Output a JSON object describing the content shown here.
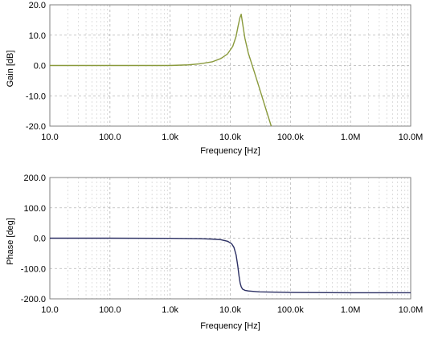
{
  "chart_data": [
    {
      "type": "line",
      "xlabel": "Frequency [Hz]",
      "ylabel": "Gain [dB]",
      "xscale": "log",
      "xlim": [
        10,
        10000000
      ],
      "ylim": [
        -20,
        20
      ],
      "grid": true,
      "xticks": [
        "10.0",
        "100.0",
        "1.0k",
        "10.0k",
        "100.0k",
        "1.0M",
        "10.0M"
      ],
      "yticks": [
        "20.0",
        "10.0",
        "0.0",
        "-10.0",
        "-20.0"
      ],
      "series": [
        {
          "color": "#8a9a3c",
          "x": [
            10,
            100,
            1000,
            2000,
            3000,
            5000,
            7000,
            9000,
            11000,
            12500,
            13500,
            14500,
            15200,
            16000,
            17500,
            20000,
            25000,
            30000,
            40000,
            48000
          ],
          "y": [
            0,
            0,
            0,
            0.2,
            0.5,
            1.2,
            2.3,
            3.8,
            6.3,
            9.6,
            13.0,
            15.8,
            16.9,
            14.0,
            9.0,
            4.0,
            -2.0,
            -7.0,
            -15.0,
            -20.0
          ]
        }
      ]
    },
    {
      "type": "line",
      "xlabel": "Frequency [Hz]",
      "ylabel": "Phase [deg]",
      "xscale": "log",
      "xlim": [
        10,
        10000000
      ],
      "ylim": [
        -200,
        200
      ],
      "grid": true,
      "xticks": [
        "10.0",
        "100.0",
        "1.0k",
        "10.0k",
        "100.0k",
        "1.0M",
        "10.0M"
      ],
      "yticks": [
        "200.0",
        "100.0",
        "0.0",
        "-100.0",
        "-200.0"
      ],
      "series": [
        {
          "color": "#2b2f63",
          "x": [
            10,
            100,
            1000,
            3000,
            5000,
            7000,
            9000,
            10500,
            11500,
            12500,
            13300,
            14000,
            14600,
            15200,
            16000,
            17500,
            20000,
            30000,
            100000,
            1000000,
            10000000
          ],
          "y": [
            0,
            0,
            -0.5,
            -1.5,
            -3,
            -5,
            -10,
            -18,
            -30,
            -55,
            -90,
            -125,
            -148,
            -160,
            -168,
            -172,
            -174,
            -177,
            -179,
            -180,
            -180
          ]
        }
      ]
    }
  ]
}
